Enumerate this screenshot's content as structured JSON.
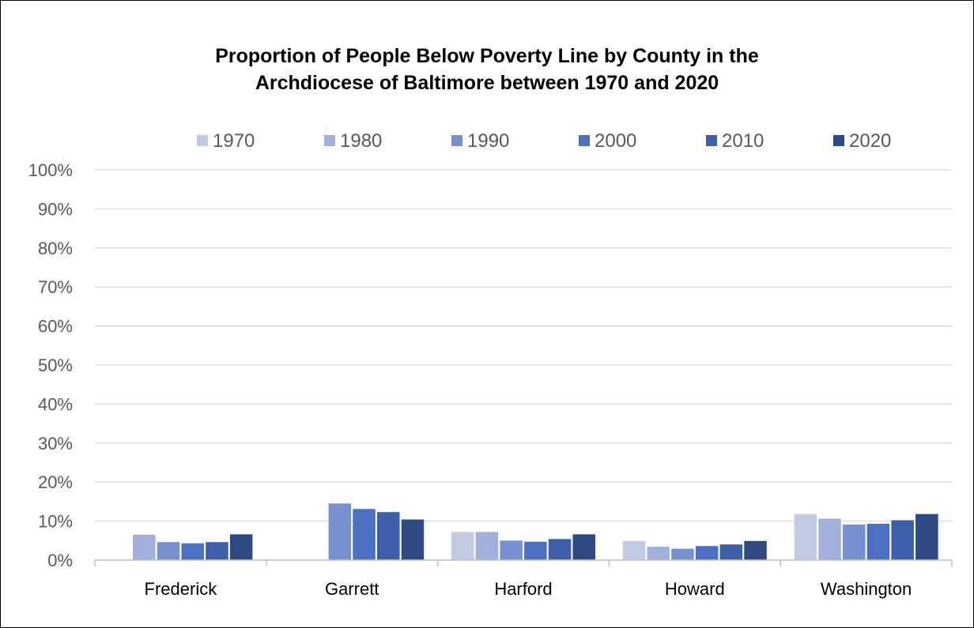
{
  "chart_data": {
    "type": "bar",
    "title_lines": [
      "Proportion of People Below Poverty Line by County in the",
      "Archdiocese of Baltimore between 1970 and 2020"
    ],
    "categories": [
      "Frederick",
      "Garrett",
      "Harford",
      "Howard",
      "Washington"
    ],
    "ylim": [
      0,
      100
    ],
    "yticks": [
      "0%",
      "10%",
      "20%",
      "30%",
      "40%",
      "50%",
      "60%",
      "70%",
      "80%",
      "90%",
      "100%"
    ],
    "grid": true,
    "legend_position": "top",
    "series": [
      {
        "name": "1970",
        "color": "#c2cae4",
        "values": [
          null,
          null,
          7.2,
          4.9,
          11.8
        ]
      },
      {
        "name": "1980",
        "color": "#a2b1db",
        "values": [
          6.5,
          null,
          7.2,
          3.4,
          10.6
        ]
      },
      {
        "name": "1990",
        "color": "#7690d0",
        "values": [
          4.6,
          14.5,
          5.0,
          2.9,
          9.1
        ]
      },
      {
        "name": "2000",
        "color": "#4b6fc3",
        "values": [
          4.3,
          13.1,
          4.7,
          3.6,
          9.3
        ]
      },
      {
        "name": "2010",
        "color": "#3d5ea8",
        "values": [
          4.6,
          12.3,
          5.4,
          4.0,
          10.2
        ]
      },
      {
        "name": "2020",
        "color": "#2e4a85",
        "values": [
          6.6,
          10.4,
          6.6,
          4.9,
          11.8
        ]
      }
    ]
  }
}
